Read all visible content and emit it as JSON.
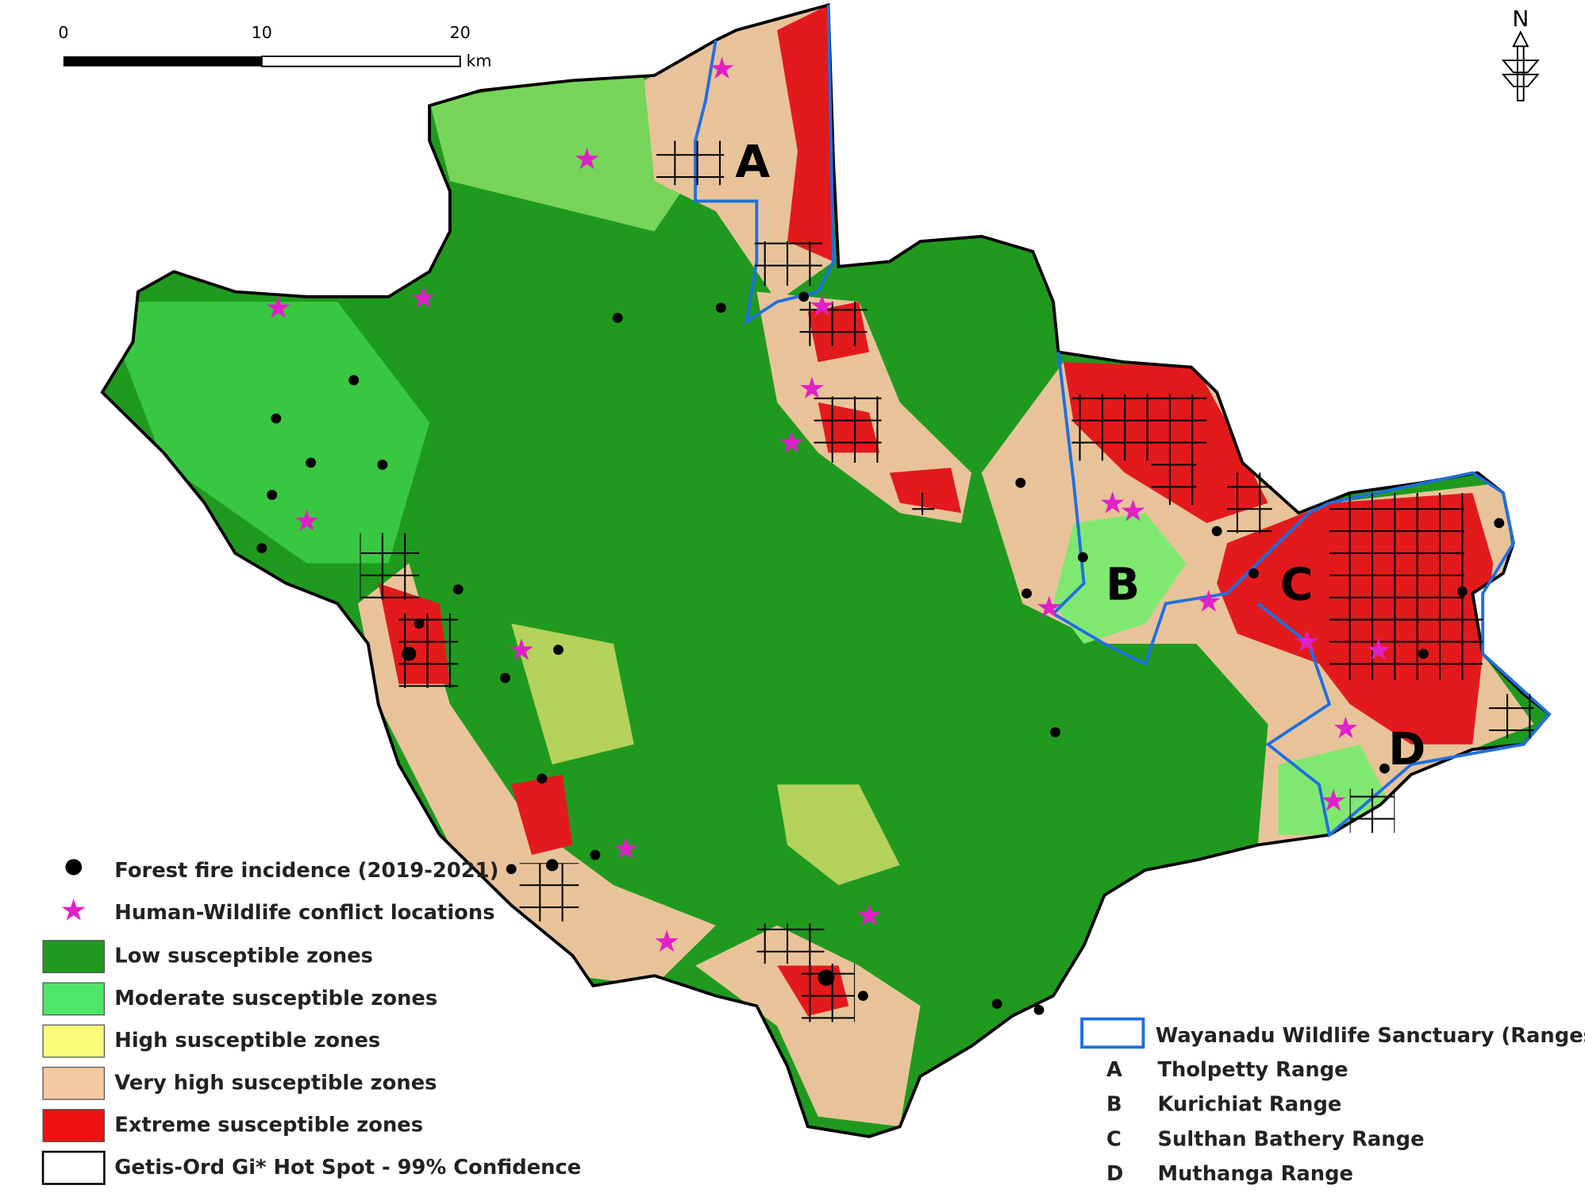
{
  "scale_bar": {
    "ticks": [
      "0",
      "10",
      "20"
    ],
    "unit": "km"
  },
  "north_arrow": "N",
  "map_labels": [
    "A",
    "B",
    "C",
    "D"
  ],
  "legend": {
    "items": [
      "Forest fire incidence (2019-2021)",
      "Human-Wildlife conflict locations",
      "Low susceptible zones",
      "Moderate susceptible zones",
      "High susceptible zones",
      "Very high susceptible zones",
      "Extreme susceptible zones",
      "Getis-Ord Gi* Hot Spot - 99% Confidence"
    ]
  },
  "sanctuary_legend": {
    "title": "Wayanadu Wildlife Sanctuary (Ranges)",
    "ranges": [
      {
        "letter": "A",
        "name": "Tholpetty Range"
      },
      {
        "letter": "B",
        "name": "Kurichiat Range"
      },
      {
        "letter": "C",
        "name": "Sulthan Bathery Range"
      },
      {
        "letter": "D",
        "name": "Muthanga Range"
      }
    ]
  }
}
